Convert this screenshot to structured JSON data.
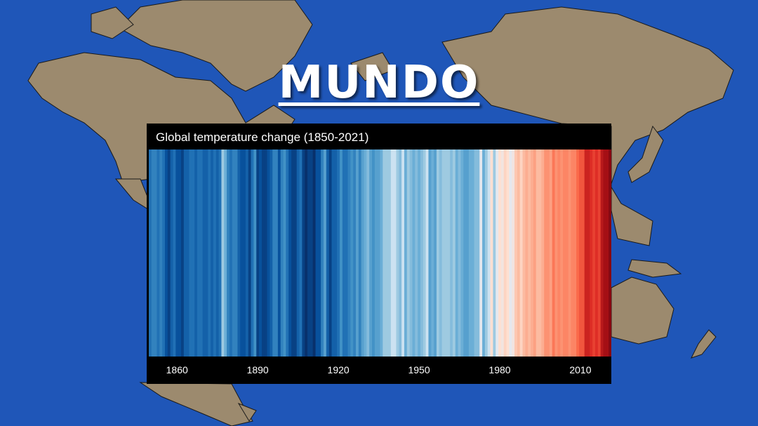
{
  "header": {
    "title": "MUNDO"
  },
  "colors": {
    "ocean": "#1f56b8",
    "land": "#9c8a6e",
    "panel": "#000000"
  },
  "chart_data": {
    "type": "heatmap",
    "title": "Global temperature change (1850-2021)",
    "x_start": 1850,
    "x_end": 2021,
    "x_ticks": [
      "1860",
      "1890",
      "1920",
      "1950",
      "1980",
      "2010"
    ],
    "anomaly_c": [
      -0.35,
      -0.3,
      -0.3,
      -0.35,
      -0.3,
      -0.35,
      -0.45,
      -0.5,
      -0.4,
      -0.35,
      -0.45,
      -0.45,
      -0.5,
      -0.4,
      -0.4,
      -0.35,
      -0.35,
      -0.4,
      -0.35,
      -0.35,
      -0.4,
      -0.4,
      -0.35,
      -0.4,
      -0.35,
      -0.4,
      -0.35,
      -0.05,
      -0.15,
      -0.3,
      -0.35,
      -0.3,
      -0.3,
      -0.4,
      -0.45,
      -0.45,
      -0.4,
      -0.5,
      -0.35,
      -0.25,
      -0.5,
      -0.45,
      -0.5,
      -0.5,
      -0.45,
      -0.4,
      -0.3,
      -0.3,
      -0.45,
      -0.3,
      -0.25,
      -0.35,
      -0.45,
      -0.5,
      -0.5,
      -0.4,
      -0.35,
      -0.5,
      -0.55,
      -0.5,
      -0.5,
      -0.55,
      -0.45,
      -0.45,
      -0.3,
      -0.2,
      -0.4,
      -0.5,
      -0.4,
      -0.4,
      -0.35,
      -0.25,
      -0.35,
      -0.35,
      -0.3,
      -0.25,
      -0.3,
      -0.2,
      -0.3,
      -0.2,
      -0.15,
      -0.1,
      -0.2,
      -0.25,
      -0.2,
      -0.2,
      -0.15,
      -0.05,
      -0.05,
      -0.05,
      0.0,
      0.0,
      -0.05,
      -0.1,
      0.0,
      -0.15,
      -0.05,
      -0.1,
      -0.15,
      -0.1,
      -0.15,
      -0.1,
      -0.05,
      0.0,
      -0.2,
      -0.15,
      -0.2,
      -0.05,
      -0.1,
      -0.05,
      -0.05,
      -0.05,
      -0.1,
      -0.05,
      -0.15,
      -0.1,
      -0.15,
      -0.2,
      -0.2,
      -0.15,
      -0.15,
      -0.1,
      -0.1,
      0.05,
      -0.15,
      -0.05,
      0.0,
      0.15,
      -0.05,
      0.05,
      0.15,
      0.1,
      0.2,
      0.15,
      0.05,
      0.1,
      0.25,
      0.3,
      0.2,
      0.3,
      0.35,
      0.3,
      0.35,
      0.4,
      0.3,
      0.3,
      0.35,
      0.45,
      0.45,
      0.4,
      0.55,
      0.45,
      0.5,
      0.45,
      0.5,
      0.5,
      0.45,
      0.5,
      0.5,
      0.6,
      0.65,
      0.65,
      0.8,
      0.8,
      0.75,
      0.7,
      0.75,
      0.7,
      0.85,
      0.9,
      0.9,
      0.95
    ]
  }
}
